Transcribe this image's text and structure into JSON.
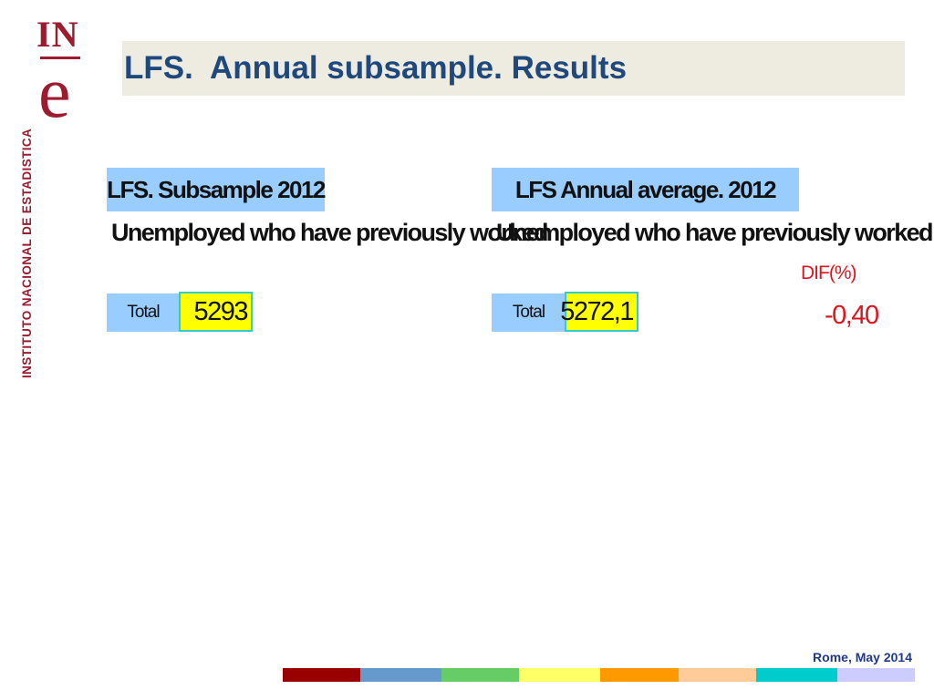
{
  "logo": {
    "letters_top": "IN",
    "letter_bottom": "e",
    "vertical_name": "INSTITUTO NACIONAL DE ESTADISTICA"
  },
  "slide": {
    "title": "LFS.  Annual subsample. Results"
  },
  "left_panel": {
    "header": "LFS. Subsample 2012",
    "subtitle": "Unemployed who have previously worked",
    "row_label": "Total",
    "row_value": "5293"
  },
  "right_panel": {
    "header": "LFS Annual average. 2012",
    "subtitle": "Unemployed who have previously worked",
    "row_label": "Total",
    "row_value": "5272,1"
  },
  "difference": {
    "label": "DIF(%)",
    "value": "-0,40"
  },
  "footer": {
    "text": "Rome, May 2014"
  },
  "colors": {
    "brand": "#9c1b2e",
    "title": "#1f497d",
    "header_bg": "#99ccff",
    "value_bg": "#ffff00",
    "value_border": "#33cccc",
    "dif": "#e0141e",
    "strip": [
      "#990000",
      "#6699cc",
      "#66cc66",
      "#ffff66",
      "#ff9900",
      "#ffcc99",
      "#00cccc",
      "#ccccff"
    ]
  }
}
